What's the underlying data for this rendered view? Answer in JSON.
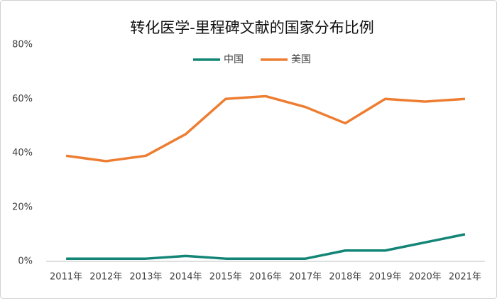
{
  "chart_data": {
    "type": "line",
    "title": "转化医学-里程碑文献的国家分布比例",
    "categories": [
      "2011年",
      "2012年",
      "2013年",
      "2014年",
      "2015年",
      "2016年",
      "2017年",
      "2018年",
      "2019年",
      "2020年",
      "2021年"
    ],
    "series": [
      {
        "name": "中国",
        "color": "#138577",
        "values": [
          1,
          1,
          1,
          2,
          1,
          1,
          1,
          4,
          4,
          7,
          10
        ]
      },
      {
        "name": "美国",
        "color": "#ED7D31",
        "values": [
          39,
          37,
          39,
          47,
          60,
          61,
          57,
          51,
          60,
          59,
          60
        ]
      }
    ],
    "ylim": [
      0,
      80
    ],
    "yticks": [
      {
        "value": 0,
        "label": "0%"
      },
      {
        "value": 20,
        "label": "20%"
      },
      {
        "value": 40,
        "label": "40%"
      },
      {
        "value": 60,
        "label": "60%"
      },
      {
        "value": 80,
        "label": "80%"
      }
    ],
    "grid": false,
    "legend": "top"
  }
}
